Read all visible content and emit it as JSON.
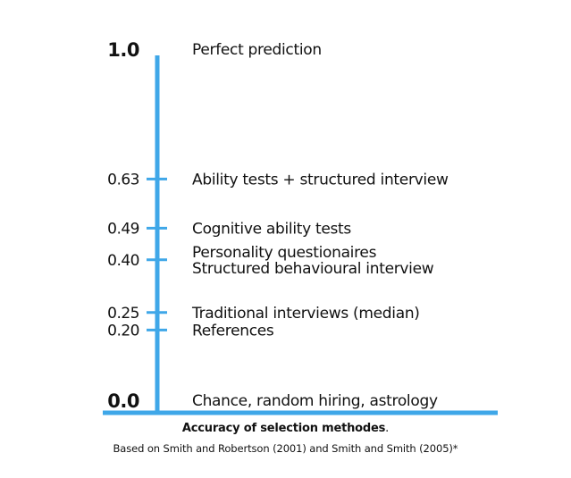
{
  "chart_data": {
    "type": "scale",
    "title": "Accuracy of selection methodes",
    "title_suffix": ".",
    "subtitle": "Based on Smith and Robertson (2001) and Smith and Smith (2005)*",
    "ylim": [
      0,
      1
    ],
    "points": [
      {
        "value": 1.0,
        "tick_label": "1.0",
        "labels": [
          "Perfect prediction"
        ],
        "emphasis": true,
        "tick": false
      },
      {
        "value": 0.63,
        "tick_label": "0.63",
        "labels": [
          "Ability tests + structured interview"
        ],
        "emphasis": false,
        "tick": true
      },
      {
        "value": 0.49,
        "tick_label": "0.49",
        "labels": [
          "Cognitive ability tests"
        ],
        "emphasis": false,
        "tick": true
      },
      {
        "value": 0.4,
        "tick_label": "0.40",
        "labels": [
          "Personality questionaires",
          "Structured behavioural interview"
        ],
        "emphasis": false,
        "tick": true
      },
      {
        "value": 0.25,
        "tick_label": "0.25",
        "labels": [
          "Traditional interviews (median)"
        ],
        "emphasis": false,
        "tick": true
      },
      {
        "value": 0.2,
        "tick_label": "0.20",
        "labels": [
          "References"
        ],
        "emphasis": false,
        "tick": true
      },
      {
        "value": 0.0,
        "tick_label": "0.0",
        "labels": [
          "Chance, random hiring, astrology"
        ],
        "emphasis": true,
        "tick": false
      }
    ],
    "colors": {
      "axis": "#3fa7e8",
      "text": "#111111"
    }
  }
}
